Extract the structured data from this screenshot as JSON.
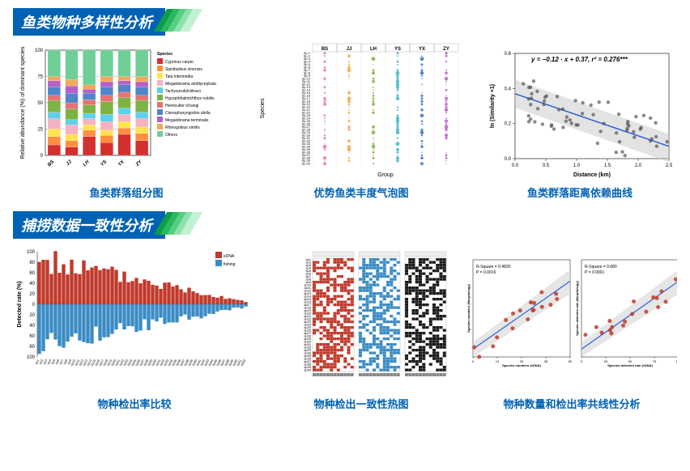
{
  "section1": {
    "title": "鱼类物种多样性分析",
    "chevron_colors": [
      "#0e9b4a",
      "#2bb95f",
      "#55cf82",
      "#8de2ab",
      "#c3f1d1"
    ]
  },
  "section2": {
    "title": "捕捞数据一致性分析",
    "chevron_colors": [
      "#0e9b4a",
      "#2bb95f",
      "#55cf82",
      "#8de2ab",
      "#c3f1d1"
    ]
  },
  "captions": {
    "c1": "鱼类群落组分图",
    "c2": "优势鱼类丰度气泡图",
    "c3": "鱼类群落距离依赖曲线",
    "c4": "物种检出率比较",
    "c5": "物种检出一致性热图",
    "c6": "物种数量和检出率共线性分析"
  },
  "stacked_chart": {
    "type": "stacked-bar",
    "xlabel_rot": -45,
    "ylabel": "Relative abundance (%) of dominant species",
    "ylim": [
      0,
      100
    ],
    "ytick_step": 25,
    "categories": [
      "BS",
      "JJ",
      "LH",
      "YS",
      "YX",
      "ZY"
    ],
    "legend_title": "Species",
    "legend": [
      "Cyprinus carpio",
      "Spinibarbus sinensis",
      "Tata intermedia",
      "Megalobrama amblycephala",
      "Tachysurufulvidraco",
      "Hypophthalmichthys nobilis",
      "Hemiculter tchangi",
      "Ctenopharyngodon idella",
      "Megalobrama terminalis",
      "Rhinogobius similis",
      "Others"
    ],
    "colors": [
      "#d32f2f",
      "#ff8f3e",
      "#ffe34f",
      "#f5b2c0",
      "#5fd0e8",
      "#7cb342",
      "#e57373",
      "#4e86c7",
      "#b95fc7",
      "#f0a95c",
      "#6fcf97"
    ],
    "data": [
      [
        10,
        8,
        7,
        10,
        6,
        11,
        5,
        8,
        6,
        4,
        25
      ],
      [
        8,
        6,
        6,
        9,
        5,
        10,
        6,
        9,
        7,
        6,
        28
      ],
      [
        18,
        6,
        5,
        6,
        5,
        8,
        5,
        6,
        4,
        4,
        33
      ],
      [
        12,
        7,
        5,
        8,
        7,
        12,
        6,
        8,
        5,
        5,
        25
      ],
      [
        20,
        6,
        6,
        7,
        6,
        10,
        5,
        7,
        4,
        4,
        25
      ],
      [
        14,
        7,
        6,
        8,
        6,
        11,
        5,
        8,
        5,
        5,
        25
      ]
    ],
    "title_fontsize": 7,
    "label_fontsize": 6,
    "background": "#ffffff",
    "grid_color": "#000000"
  },
  "bubble_chart": {
    "type": "bubble",
    "groups": [
      "BS",
      "JJ",
      "LH",
      "YS",
      "YX",
      "ZY"
    ],
    "group_colors": [
      "#e87ab4",
      "#f0a73c",
      "#7cb342",
      "#3fb6c7",
      "#3a70c4",
      "#b95fc7"
    ],
    "n_species_rows": 40,
    "xlabel": "Group",
    "ylabel": "Species",
    "bubble_min": 0.5,
    "bubble_max": 2.5,
    "background": "#ffffff",
    "grid_color": "#cccccc"
  },
  "distance_chart": {
    "type": "scatter-regression",
    "equation": "y = −0.12 · x + 0.37,  r² = 0.276***",
    "xlabel": "Distance (km)",
    "ylabel": "ln (Similarity +1)",
    "xlim": [
      0.0,
      2.5
    ],
    "ylim": [
      0.0,
      0.6
    ],
    "xtick_step": 0.5,
    "ytick_step": 0.2,
    "line_color": "#2962d9",
    "band_color": "#c8c8c8",
    "point_color": "#4a4a4a",
    "point_count": 70,
    "background": "#ffffff"
  },
  "detected_rate_chart": {
    "type": "diverging-bar",
    "ylabel": "Detected rate (%)",
    "ylim": [
      -100,
      100
    ],
    "ytick_step": 20,
    "legend": [
      "eDNA",
      "fishing"
    ],
    "colors": {
      "eDNA": "#c0392b",
      "fishing": "#3a8bc4"
    },
    "n_species": 52,
    "background": "#ffffff"
  },
  "heatmap_chart": {
    "type": "heatmap-panels",
    "panels": 3,
    "panel_colors": [
      "#c0392b",
      "#3a8bc4",
      "#1a1a1a"
    ],
    "panel_bg": "#ffffff",
    "rows": 40,
    "cols_per_panel": 12,
    "background": "#ffffff"
  },
  "colinear_chart": {
    "type": "scatter-regression-pair",
    "panels": [
      {
        "annot1": "R-Square = 0.4820",
        "annot2": "P = 0.0016",
        "xlabel": "Species numbers (eDNA)",
        "ylabel": "Species numbers (Morphology)",
        "line_color": "#2962d9",
        "band_color": "#d6d6d6",
        "point_color": "#c0392b",
        "xlim": [
          0,
          50
        ],
        "ylim": [
          0,
          50
        ]
      },
      {
        "annot1": "R-Square = 0.680",
        "annot2": "P = 0.0001",
        "xlabel": "Species detected rate (eDNA)",
        "ylabel": "Species detected rate (Morphology)",
        "line_color": "#2962d9",
        "band_color": "#d6d6d6",
        "point_color": "#c0392b",
        "xlim": [
          0,
          100
        ],
        "ylim": [
          0,
          100
        ]
      }
    ],
    "background": "#ffffff"
  }
}
